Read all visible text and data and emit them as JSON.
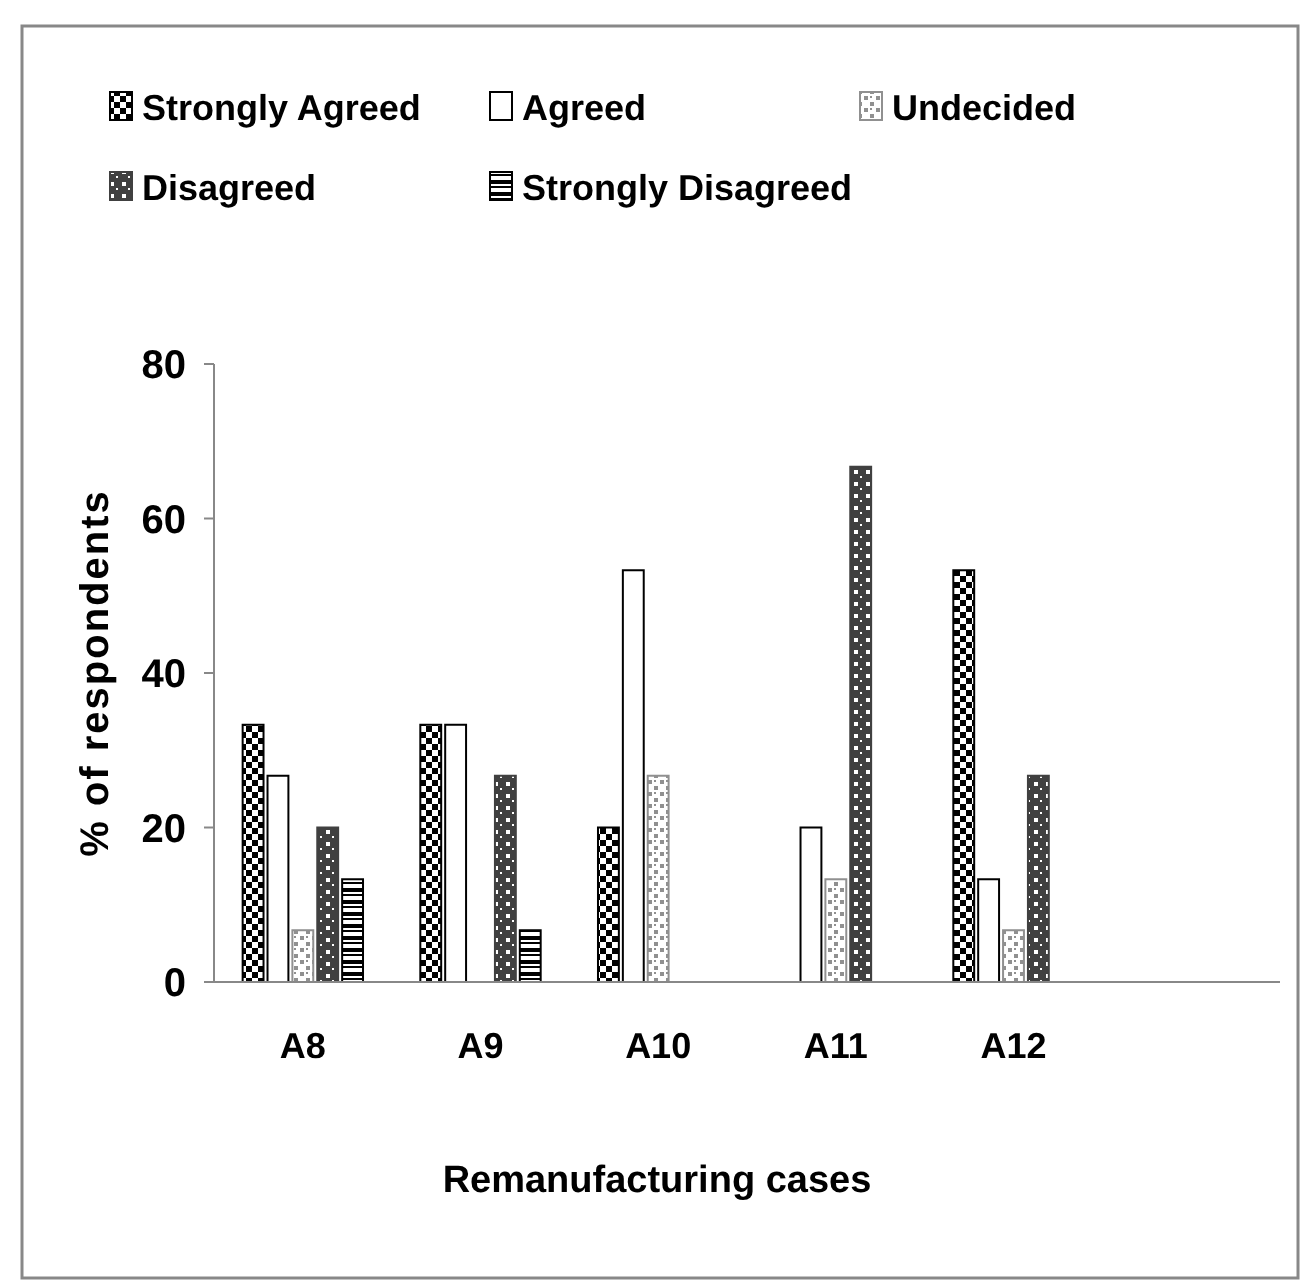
{
  "chart_data": {
    "type": "bar",
    "xlabel": "Remanufacturing cases",
    "ylabel": "% of respondents",
    "categories": [
      "A8",
      "A9",
      "A10",
      "A11",
      "A12",
      null
    ],
    "series": [
      {
        "name": "Strongly Agreed",
        "color": "#000000",
        "values": [
          33.3,
          33.3,
          20,
          0,
          53.3,
          null
        ]
      },
      {
        "name": "Agreed",
        "color": "#ffffff",
        "values": [
          26.7,
          33.3,
          53.3,
          20,
          13.3,
          null
        ]
      },
      {
        "name": "Undecided",
        "color": "#909090",
        "values": [
          6.7,
          0,
          26.7,
          13.3,
          6.7,
          null
        ]
      },
      {
        "name": "Disagreed",
        "color": "#404040",
        "values": [
          20,
          26.7,
          0,
          66.7,
          26.7,
          null
        ]
      },
      {
        "name": "Strongly Disagreed",
        "color": "#000000",
        "values": [
          13.3,
          6.7,
          0,
          0,
          0,
          null
        ]
      }
    ],
    "ylim": [
      0,
      80
    ],
    "yticks": [
      0,
      20,
      40,
      60,
      80
    ],
    "grid": false,
    "legend": "top"
  }
}
